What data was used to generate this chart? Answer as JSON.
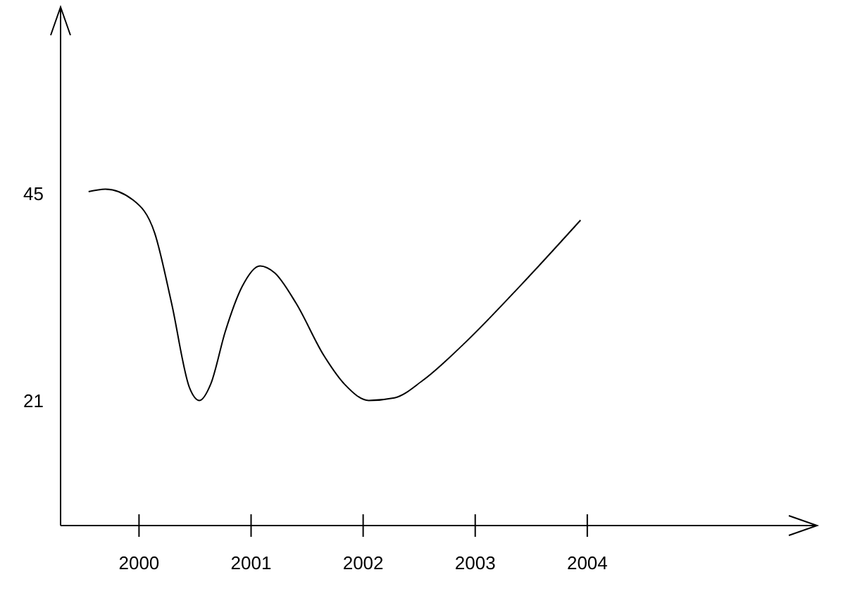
{
  "chart_data": {
    "type": "line",
    "x": [
      1999.55,
      1999.7,
      1999.95,
      2000.14,
      2000.29,
      2000.45,
      2000.54,
      2000.64,
      2000.77,
      2000.92,
      2001.08,
      2001.21,
      2001.4,
      2001.65,
      2001.84,
      2002.05,
      2002.28,
      2002.53,
      2002.91,
      2003.41,
      2003.94
    ],
    "series": [
      {
        "color": "#000000",
        "values": [
          45.2,
          45.5,
          44.2,
          40.4,
          32.3,
          22.5,
          21.0,
          22.9,
          29.0,
          34.2,
          36.6,
          35.8,
          32.3,
          26.2,
          22.8,
          21.0,
          21.3,
          23.3,
          27.7,
          34.4,
          41.9
        ]
      }
    ],
    "xlim": [
      1999.3,
      2006.05
    ],
    "xticks": [
      2000,
      2001,
      2002,
      2003,
      2004
    ],
    "ylim": [
      6.5,
      66.6
    ],
    "yticks": [
      21,
      45
    ]
  }
}
